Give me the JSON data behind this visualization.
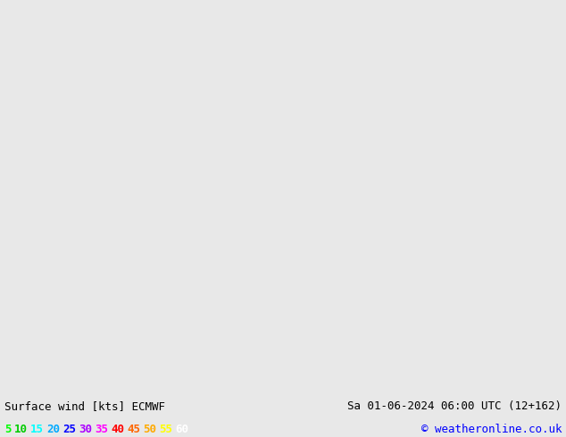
{
  "title_left": "Surface wind [kts] ECMWF",
  "title_right": "Sa 01-06-2024 06:00 UTC (12+162)",
  "copyright": "© weatheronline.co.uk",
  "legend_values": [
    "5",
    "10",
    "15",
    "20",
    "25",
    "30",
    "35",
    "40",
    "45",
    "50",
    "55",
    "60"
  ],
  "legend_colors": [
    "#00ff00",
    "#00cc00",
    "#00ffff",
    "#00aaff",
    "#0000ff",
    "#aa00ff",
    "#ff00ff",
    "#ff0000",
    "#ff6600",
    "#ffaa00",
    "#ffff00",
    "#ffffff"
  ],
  "bg_color": "#e8e8e8",
  "land_color": "#ccffcc",
  "border_color": "#888888",
  "text_color": "#000000",
  "font_size_title": 9,
  "font_size_legend": 9,
  "fig_width": 6.34,
  "fig_height": 4.9,
  "dpi": 100
}
